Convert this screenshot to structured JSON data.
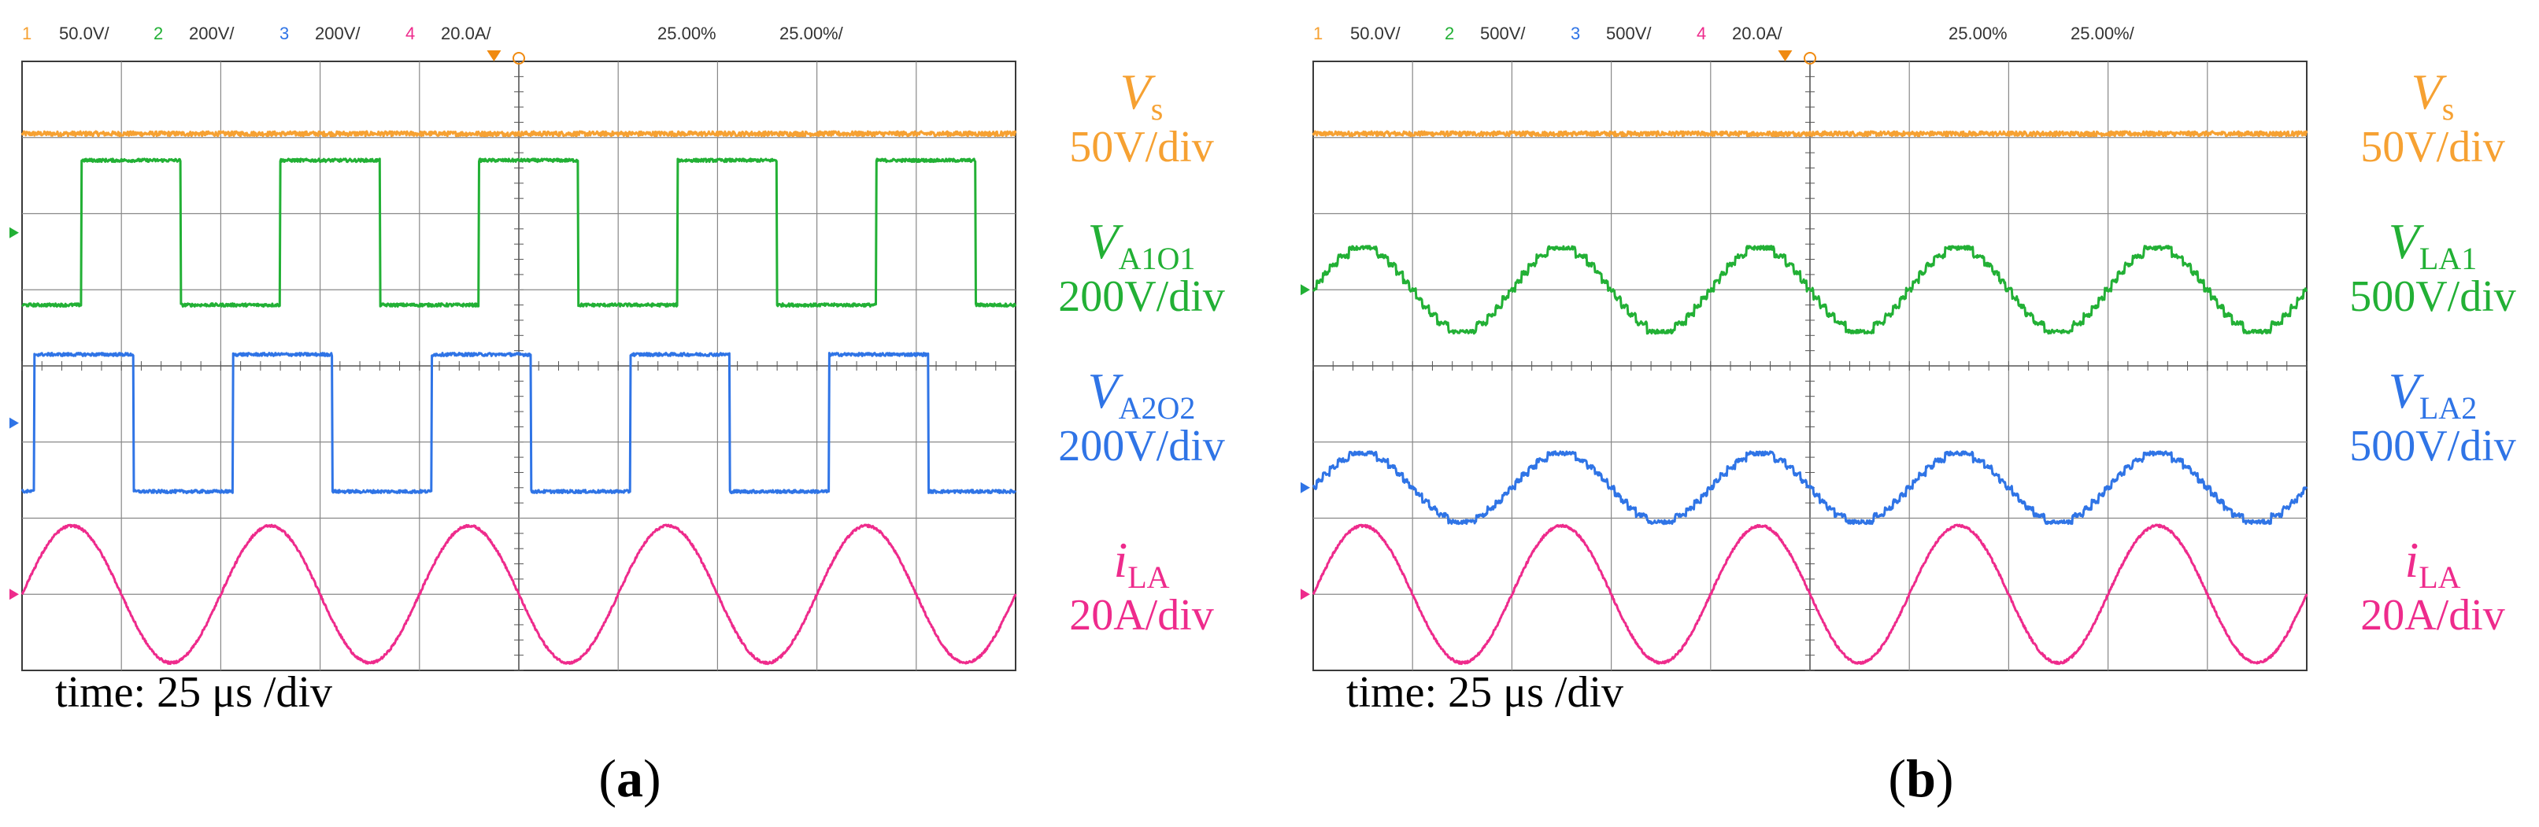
{
  "colors": {
    "ch1": "#f6a132",
    "ch2": "#22b035",
    "ch3": "#2f74e6",
    "ch4": "#ee2b8c",
    "grid": "#3a3a3a",
    "header_num": "#f6a132"
  },
  "chart_data": [
    {
      "type": "line",
      "panel": "a",
      "caption_letter": "a",
      "header": {
        "ch1_num": "1",
        "ch1_scale": "50.0V/",
        "ch2_num": "2",
        "ch2_scale": "200V/",
        "ch3_num": "3",
        "ch3_scale": "200V/",
        "ch4_num": "4",
        "ch4_scale": "20.0A/",
        "trig_pos": "25.00%",
        "time_per_div": "25.00%/"
      },
      "xlabel": "time: 25 μs /div",
      "x_divisions": 10,
      "y_divisions": 8,
      "series": [
        {
          "name": "Vs",
          "name_sub": "s",
          "name_main": "V",
          "scale": "50V/div",
          "color_key": "ch1",
          "kind": "dc",
          "level_div": 3.05
        },
        {
          "name": "VA1O1",
          "name_main": "V",
          "name_sub": "A1O1",
          "scale": "200V/div",
          "color_key": "ch2",
          "kind": "square",
          "ground_div": 1.75,
          "amplitude_div": 0.95,
          "period_div": 2.0,
          "phase_div": 0.6
        },
        {
          "name": "VA2O2",
          "name_main": "V",
          "name_sub": "A2O2",
          "scale": "200V/div",
          "color_key": "ch3",
          "kind": "square",
          "ground_div": -0.75,
          "amplitude_div": 0.9,
          "period_div": 2.0,
          "phase_div": 0.12
        },
        {
          "name": "iLA",
          "name_main": "i",
          "name_sub": "LA",
          "scale": "20A/div",
          "color_key": "ch4",
          "kind": "sine",
          "ground_div": -3.0,
          "amplitude_div": 0.9,
          "period_div": 2.0,
          "phase_div": 0.0
        }
      ]
    },
    {
      "type": "line",
      "panel": "b",
      "caption_letter": "b",
      "header": {
        "ch1_num": "1",
        "ch1_scale": "50.0V/",
        "ch2_num": "2",
        "ch2_scale": "500V/",
        "ch3_num": "3",
        "ch3_scale": "500V/",
        "ch4_num": "4",
        "ch4_scale": "20.0A/",
        "trig_pos": "25.00%",
        "time_per_div": "25.00%/"
      },
      "xlabel": "time: 25 μs /div",
      "x_divisions": 10,
      "y_divisions": 8,
      "series": [
        {
          "name": "Vs",
          "name_main": "V",
          "name_sub": "s",
          "scale": "50V/div",
          "color_key": "ch1",
          "kind": "dc",
          "level_div": 3.05
        },
        {
          "name": "VLA1",
          "name_main": "V",
          "name_sub": "LA1",
          "scale": "500V/div",
          "color_key": "ch2",
          "kind": "stepped",
          "ground_div": 1.0,
          "amplitude_div": 0.55,
          "period_div": 2.0,
          "phase_div": 0.0
        },
        {
          "name": "VLA2",
          "name_main": "V",
          "name_sub": "LA2",
          "scale": "500V/div",
          "color_key": "ch3",
          "kind": "stepped",
          "ground_div": -1.6,
          "amplitude_div": 0.45,
          "period_div": 2.0,
          "phase_div": 0.0
        },
        {
          "name": "iLA",
          "name_main": "i",
          "name_sub": "LA",
          "scale": "20A/div",
          "color_key": "ch4",
          "kind": "sine",
          "ground_div": -3.0,
          "amplitude_div": 0.9,
          "period_div": 2.0,
          "phase_div": 0.0
        }
      ]
    }
  ]
}
